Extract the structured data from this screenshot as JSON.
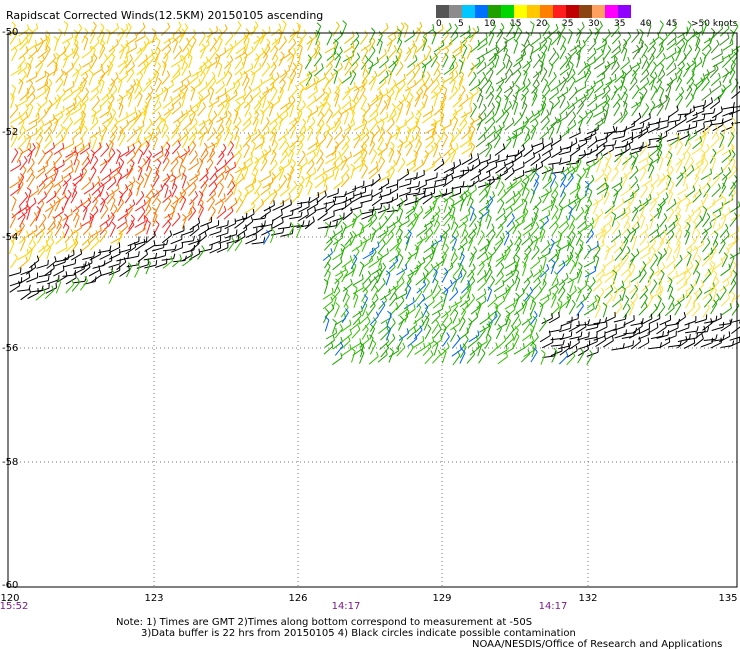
{
  "title": "Rapidscat Corrected Winds(12.5KM) 20150105 ascending",
  "legend": {
    "colors": [
      "#555555",
      "#8c8c8c",
      "#00c8ff",
      "#0070ff",
      "#22a000",
      "#00d700",
      "#ffff00",
      "#ffc800",
      "#ff8000",
      "#ff1e1e",
      "#c00000",
      "#8b4513",
      "#ffa060",
      "#ff00ff",
      "#9000ff"
    ],
    "labels": [
      "0",
      "5",
      "10",
      "15",
      "20",
      "25",
      "30",
      "35",
      "40",
      "45",
      ">50 knots"
    ]
  },
  "axes": {
    "lat_labels": [
      "-50",
      "-52",
      "-54",
      "-56",
      "-58",
      "-60"
    ],
    "lon_labels": [
      "120",
      "123",
      "126",
      "129",
      "132",
      "135"
    ],
    "time_labels": [
      "15:52",
      "14:17",
      "14:17"
    ]
  },
  "notes": {
    "line1": "Note: 1) Times are GMT 2)Times along bottom correspond to measurement at -50S",
    "line2": "3)Data buffer is 22 hrs from 20150105 4) Black circles indicate possible contamination",
    "line3": "NOAA/NESDIS/Office of Research and Applications"
  }
}
